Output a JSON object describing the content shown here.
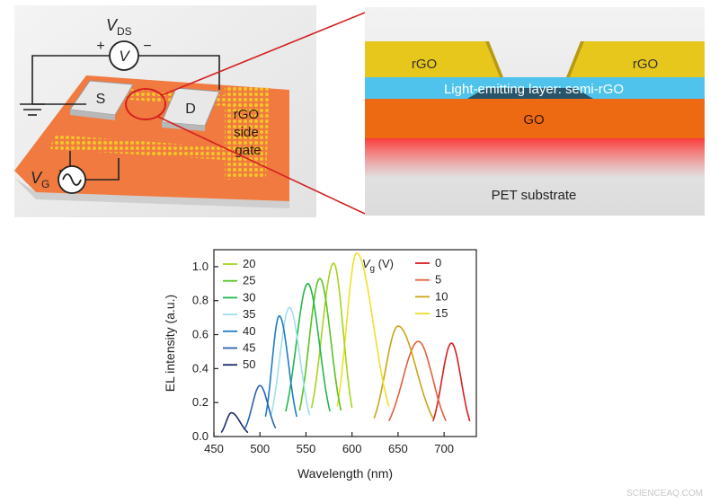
{
  "device": {
    "vds_main": "V",
    "vds_sub": "DS",
    "voltmeter_symbol": "V",
    "plus": "+",
    "minus": "−",
    "source_label": "S",
    "drain_label": "D",
    "gate_label_lines": [
      "rGO",
      "side",
      "gate"
    ],
    "vg_main": "V",
    "vg_sub": "G"
  },
  "cross_section": {
    "left_electrode": "rGO",
    "right_electrode": "rGO",
    "emitting_layer": "Light-emitting layer: semi-rGO",
    "go_layer": "GO",
    "substrate": "PET substrate"
  },
  "colors": {
    "device_substrate": "#f07a40",
    "rgo": "#e8c71c",
    "emitting": "#4fc3ec",
    "go": "#ee6a12",
    "glow": "#ff2a2a",
    "callout": "#d42020"
  },
  "chart_data": {
    "type": "line",
    "xlabel": "Wavelength (nm)",
    "ylabel": "EL intensity (a.u.)",
    "xlim": [
      450,
      735
    ],
    "ylim": [
      0,
      1.1
    ],
    "xticks": [
      "450",
      "500",
      "550",
      "600",
      "650",
      "700"
    ],
    "yticks": [
      "0.0",
      "0.2",
      "0.4",
      "0.6",
      "0.8",
      "1.0"
    ],
    "legend_title_main": "V",
    "legend_title_sub": "g",
    "legend_title_unit": "(V)",
    "series": [
      {
        "name": "0",
        "color": "#d81e1e",
        "peak_x": 708,
        "peak_y": 0.55,
        "x_range": [
          688,
          728
        ]
      },
      {
        "name": "5",
        "color": "#e2603c",
        "peak_x": 672,
        "peak_y": 0.56,
        "x_range": [
          640,
          702
        ]
      },
      {
        "name": "10",
        "color": "#c9a418",
        "peak_x": 650,
        "peak_y": 0.65,
        "x_range": [
          624,
          688
        ]
      },
      {
        "name": "15",
        "color": "#f0e02a",
        "peak_x": 605,
        "peak_y": 1.08,
        "x_range": [
          584,
          640
        ]
      },
      {
        "name": "20",
        "color": "#a6d41c",
        "peak_x": 580,
        "peak_y": 1.02,
        "x_range": [
          556,
          600
        ]
      },
      {
        "name": "25",
        "color": "#58c41e",
        "peak_x": 565,
        "peak_y": 0.93,
        "x_range": [
          543,
          588
        ]
      },
      {
        "name": "30",
        "color": "#22b84a",
        "peak_x": 552,
        "peak_y": 0.9,
        "x_range": [
          528,
          576
        ]
      },
      {
        "name": "35",
        "color": "#9ee0ec",
        "peak_x": 532,
        "peak_y": 0.76,
        "x_range": [
          512,
          554
        ]
      },
      {
        "name": "40",
        "color": "#1c7cc8",
        "peak_x": 521,
        "peak_y": 0.71,
        "x_range": [
          506,
          540
        ]
      },
      {
        "name": "45",
        "color": "#2a62b0",
        "peak_x": 500,
        "peak_y": 0.3,
        "x_range": [
          484,
          517
        ]
      },
      {
        "name": "50",
        "color": "#1c2a6e",
        "peak_x": 469,
        "peak_y": 0.14,
        "x_range": [
          458,
          487
        ]
      }
    ],
    "legend_left": [
      "20",
      "25",
      "30",
      "35",
      "40",
      "45",
      "50"
    ],
    "legend_right": [
      "0",
      "5",
      "10",
      "15"
    ]
  },
  "watermark": "SCIENCEAQ.COM"
}
